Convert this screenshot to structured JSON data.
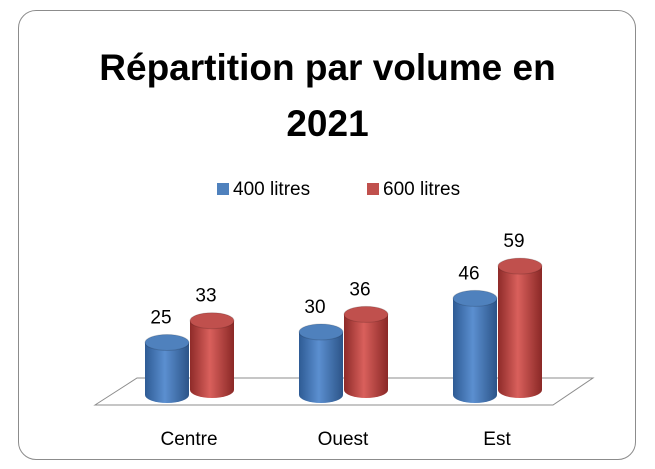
{
  "chart_data": {
    "type": "bar",
    "title": "Répartition par volume en 2021",
    "categories": [
      "Centre",
      "Ouest",
      "Est"
    ],
    "series": [
      {
        "name": "400 litres",
        "color": "#4f81bd",
        "values": [
          25,
          30,
          46
        ]
      },
      {
        "name": "600 litres",
        "color": "#c0504d",
        "values": [
          33,
          36,
          59
        ]
      }
    ],
    "legend": "top"
  }
}
